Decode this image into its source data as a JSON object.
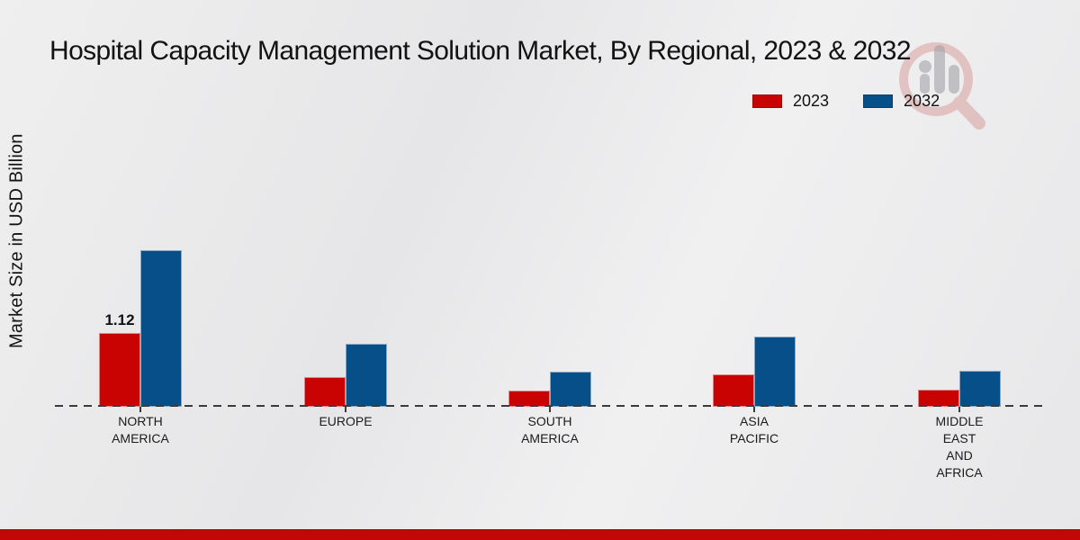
{
  "title": "Hospital Capacity Management Solution Market, By Regional, 2023 & 2032",
  "y_axis_label": "Market Size in USD Billion",
  "legend": [
    {
      "label": "2023",
      "color": "#c80301"
    },
    {
      "label": "2032",
      "color": "#064f88"
    }
  ],
  "colors": {
    "series_2023": "#c80301",
    "series_2032": "#064f88",
    "baseline": "#3b3b3b",
    "bottom_band": "#c20707",
    "background": "#e9e9ea"
  },
  "watermark": {
    "name": "magnifier-growth-bars-logo"
  },
  "chart_data": {
    "type": "bar",
    "title": "Hospital Capacity Management Solution Market, By Regional, 2023 & 2032",
    "xlabel": "",
    "ylabel": "Market Size in USD Billion",
    "categories": [
      "NORTH AMERICA",
      "EUROPE",
      "SOUTH AMERICA",
      "ASIA PACIFIC",
      "MIDDLE EAST AND AFRICA"
    ],
    "category_label_lines": [
      [
        "NORTH",
        "AMERICA"
      ],
      [
        "EUROPE"
      ],
      [
        "SOUTH",
        "AMERICA"
      ],
      [
        "ASIA",
        "PACIFIC"
      ],
      [
        "MIDDLE",
        "EAST",
        "AND",
        "AFRICA"
      ]
    ],
    "series": [
      {
        "name": "2023",
        "color": "#c80301",
        "values": [
          1.12,
          0.45,
          0.25,
          0.49,
          0.26
        ]
      },
      {
        "name": "2032",
        "color": "#064f88",
        "values": [
          2.38,
          0.96,
          0.53,
          1.07,
          0.55
        ]
      }
    ],
    "value_labels": [
      {
        "series": "2023",
        "category": "NORTH AMERICA",
        "text": "1.12"
      }
    ],
    "ylim": [
      0,
      2.6
    ],
    "grid": false,
    "baseline_style": "dashed",
    "legend_position": "top-right",
    "units": "USD Billion"
  }
}
